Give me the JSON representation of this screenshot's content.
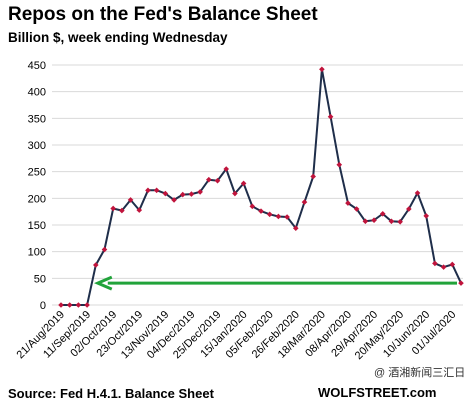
{
  "chart_data": {
    "type": "line",
    "title": "Repos on the Fed's Balance Sheet",
    "subtitle": "Billion $, week ending Wednesday",
    "source": "Source: Fed H.4.1. Balance Sheet",
    "watermark": "WOLFSTREET.com",
    "overlay_text": "@ 酒湘新闻三汇日",
    "colors": {
      "line": "#1f2e4a",
      "marker": "#c0143c",
      "grid": "#d9d9d9",
      "arrow": "#21a33a"
    },
    "ylim": [
      0,
      450
    ],
    "yticks": [
      0,
      50,
      100,
      150,
      200,
      250,
      300,
      350,
      400,
      450
    ],
    "x_tick_labels": [
      "21/Aug/2019",
      "11/Sep/2019",
      "02/Oct/2019",
      "23/Oct/2019",
      "13/Nov/2019",
      "04/Dec/2019",
      "25/Dec/2019",
      "15/Jan/2020",
      "05/Feb/2020",
      "26/Feb/2020",
      "18/Mar/2020",
      "08/Apr/2020",
      "29/Apr/2020",
      "20/May/2020",
      "10/Jun/2020",
      "01/Jul/2020"
    ],
    "series": [
      {
        "values": [
          0,
          0,
          0,
          0,
          75,
          104,
          181,
          177,
          197,
          178,
          215,
          215,
          209,
          197,
          207,
          208,
          212,
          235,
          233,
          255,
          209,
          228,
          185,
          176,
          170,
          166,
          165,
          144,
          193,
          241,
          442,
          353,
          263,
          191,
          180,
          157,
          159,
          171,
          157,
          156,
          180,
          210,
          167,
          78,
          71,
          76,
          41
        ]
      }
    ],
    "annotations": [
      {
        "type": "arrow",
        "direction": "left",
        "value": 41,
        "from_index": 46,
        "to_index": 4
      }
    ]
  }
}
